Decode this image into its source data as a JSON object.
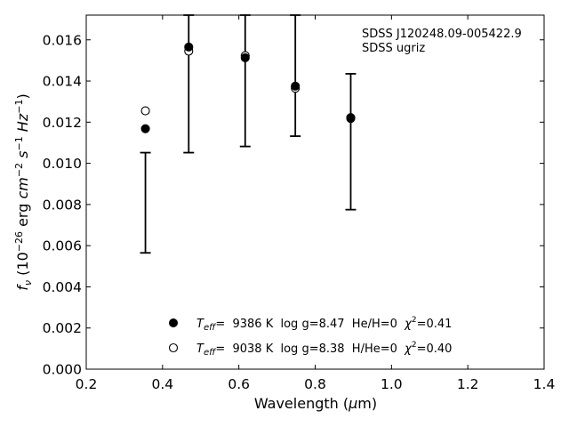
{
  "chart_data": {
    "type": "scatter",
    "xlabel": "Wavelength (μm)",
    "ylabel": "f_ν (10^-26 erg cm^-2 s^-1 Hz^-1)",
    "xlim": [
      0.2,
      1.4
    ],
    "ylim": [
      0.0,
      0.0172
    ],
    "x_ticks": [
      "0.2",
      "0.4",
      "0.6",
      "0.8",
      "1.0",
      "1.2",
      "1.4"
    ],
    "x_tick_values": [
      0.2,
      0.4,
      0.6,
      0.8,
      1.0,
      1.2,
      1.4
    ],
    "y_ticks": [
      "0.000",
      "0.002",
      "0.004",
      "0.006",
      "0.008",
      "0.010",
      "0.012",
      "0.014",
      "0.016"
    ],
    "y_tick_values": [
      0.0,
      0.002,
      0.004,
      0.006,
      0.008,
      0.01,
      0.012,
      0.014,
      0.016
    ],
    "annotations": [
      "SDSS J120248.09-005422.9",
      "SDSS ugriz"
    ],
    "observed": {
      "x": [
        0.3551,
        0.4686,
        0.6166,
        0.748,
        0.8932
      ],
      "low": [
        0.00565,
        0.01052,
        0.01082,
        0.01132,
        0.00775
      ],
      "high": [
        0.01052,
        0.0172,
        0.0172,
        0.0172,
        0.01435
      ],
      "comment": ""
    },
    "series": [
      {
        "name": "T_eff=  9386 K  log g=8.47  He/H=0  χ²=0.41",
        "marker": "filled",
        "x": [
          0.3551,
          0.4686,
          0.6166,
          0.748,
          0.8932
        ],
        "y": [
          0.01168,
          0.01565,
          0.01513,
          0.01375,
          0.01222
        ]
      },
      {
        "name": "T_eff=  9038 K  log g=8.38  H/He=0  χ²=0.40",
        "marker": "open",
        "x": [
          0.3551,
          0.4686,
          0.6166,
          0.748,
          0.8932
        ],
        "y": [
          0.01255,
          0.01545,
          0.01523,
          0.01365,
          0.01218
        ]
      }
    ],
    "legend": {
      "placement": "bottom-center",
      "entries": [
        {
          "teff": "T",
          "teff_sub": "eff",
          "text": "=  9386 K  log g=8.47  He/H=0  ",
          "chi": "χ",
          "chi_sup": "2",
          "chi_val": "=0.41"
        },
        {
          "teff": "T",
          "teff_sub": "eff",
          "text": "=  9038 K  log g=8.38  H/He=0  ",
          "chi": "χ",
          "chi_sup": "2",
          "chi_val": "=0.40"
        }
      ]
    },
    "grid": false
  }
}
